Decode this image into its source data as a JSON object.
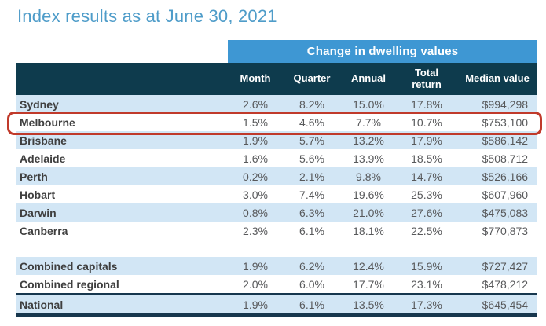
{
  "title": "Index results as at June 30, 2021",
  "colors": {
    "title": "#4e9cc9",
    "band": "#3e97d3",
    "header_bg": "#0e3b4d",
    "stripe": "#d2e6f5",
    "rule": "#17374e",
    "highlight": "#c03a2b",
    "label_text": "#3f3f3f",
    "num_text": "#58595b"
  },
  "chart_data": {
    "type": "table",
    "title": "Index results as at June 30, 2021",
    "group_header": "Change in dwelling values",
    "group_header_spans": [
      "Month",
      "Quarter",
      "Annual",
      "Total return",
      "Median value"
    ],
    "columns": [
      "Month",
      "Quarter",
      "Annual",
      "Total return",
      "Median value"
    ],
    "highlighted_row": "Melbourne",
    "rows": [
      {
        "label": "Sydney",
        "month": "2.6%",
        "quarter": "8.2%",
        "annual": "15.0%",
        "total_return": "17.8%",
        "median_value": "$994,298"
      },
      {
        "label": "Melbourne",
        "month": "1.5%",
        "quarter": "4.6%",
        "annual": "7.7%",
        "total_return": "10.7%",
        "median_value": "$753,100"
      },
      {
        "label": "Brisbane",
        "month": "1.9%",
        "quarter": "5.7%",
        "annual": "13.2%",
        "total_return": "17.9%",
        "median_value": "$586,142"
      },
      {
        "label": "Adelaide",
        "month": "1.6%",
        "quarter": "5.6%",
        "annual": "13.9%",
        "total_return": "18.5%",
        "median_value": "$508,712"
      },
      {
        "label": "Perth",
        "month": "0.2%",
        "quarter": "2.1%",
        "annual": "9.8%",
        "total_return": "14.7%",
        "median_value": "$526,166"
      },
      {
        "label": "Hobart",
        "month": "3.0%",
        "quarter": "7.4%",
        "annual": "19.6%",
        "total_return": "25.3%",
        "median_value": "$607,960"
      },
      {
        "label": "Darwin",
        "month": "0.8%",
        "quarter": "6.3%",
        "annual": "21.0%",
        "total_return": "27.6%",
        "median_value": "$475,083"
      },
      {
        "label": "Canberra",
        "month": "2.3%",
        "quarter": "6.1%",
        "annual": "18.1%",
        "total_return": "22.5%",
        "median_value": "$770,873"
      },
      {
        "label": "Combined capitals",
        "month": "1.9%",
        "quarter": "6.2%",
        "annual": "12.4%",
        "total_return": "15.9%",
        "median_value": "$727,427"
      },
      {
        "label": "Combined regional",
        "month": "2.0%",
        "quarter": "6.0%",
        "annual": "17.7%",
        "total_return": "23.1%",
        "median_value": "$478,212"
      },
      {
        "label": "National",
        "month": "1.9%",
        "quarter": "6.1%",
        "annual": "13.5%",
        "total_return": "17.3%",
        "median_value": "$645,454"
      }
    ]
  }
}
